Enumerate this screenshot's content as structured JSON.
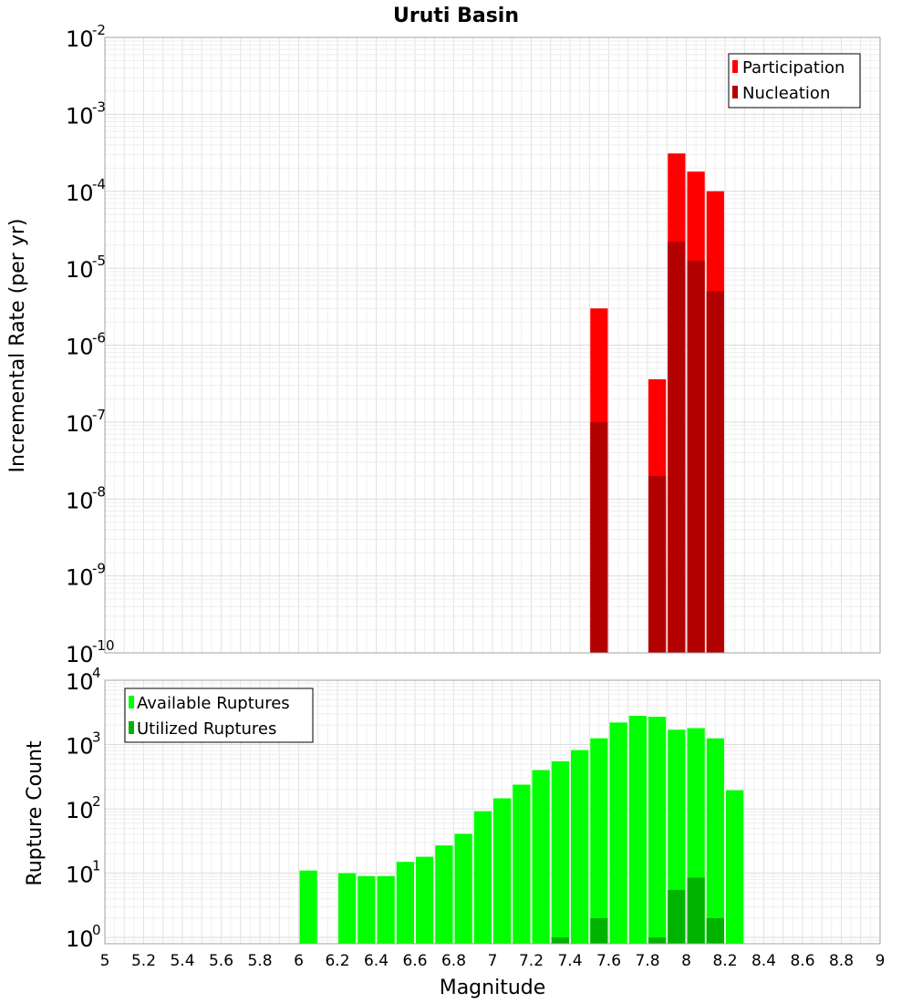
{
  "chart_data": [
    {
      "type": "bar",
      "panel": "top",
      "title": "Uruti Basin",
      "xlabel": "",
      "ylabel": "Incremental Rate (per yr)",
      "y_scale": "log",
      "ylim": [
        1e-10,
        0.01
      ],
      "xlim": [
        5,
        9
      ],
      "y_tick_exponents": [
        -10,
        -9,
        -8,
        -7,
        -6,
        -5,
        -4,
        -3,
        -2
      ],
      "bar_width": 0.1,
      "legend": {
        "position": "top-right",
        "entries": [
          "Participation",
          "Nucleation"
        ]
      },
      "grid": true,
      "series": [
        {
          "name": "Participation",
          "color": "#ff0000",
          "x": [
            7.55,
            7.85,
            7.95,
            8.05,
            8.15
          ],
          "values": [
            3e-06,
            3.6e-07,
            0.00031,
            0.00018,
            0.0001
          ]
        },
        {
          "name": "Nucleation",
          "color": "#b30000",
          "x": [
            7.55,
            7.85,
            7.95,
            8.05,
            8.15
          ],
          "values": [
            1e-07,
            2e-08,
            2.2e-05,
            1.25e-05,
            5e-06
          ]
        }
      ]
    },
    {
      "type": "bar",
      "panel": "bottom",
      "xlabel": "Magnitude",
      "ylabel": "Rupture Count",
      "y_scale": "log",
      "ylim": [
        0.8,
        10000.0
      ],
      "xlim": [
        5,
        9
      ],
      "x_ticks": [
        "5",
        "5.2",
        "5.4",
        "5.6",
        "5.8",
        "6",
        "6.2",
        "6.4",
        "6.6",
        "6.8",
        "7",
        "7.2",
        "7.4",
        "7.6",
        "7.8",
        "8",
        "8.2",
        "8.4",
        "8.6",
        "8.8",
        "9"
      ],
      "y_tick_exponents": [
        0,
        1,
        2,
        3,
        4
      ],
      "bar_width": 0.1,
      "legend": {
        "position": "top-left",
        "entries": [
          "Available Ruptures",
          "Utilized Ruptures"
        ]
      },
      "grid": true,
      "series": [
        {
          "name": "Available Ruptures",
          "color": "#00ff00",
          "x": [
            6.05,
            6.25,
            6.35,
            6.45,
            6.55,
            6.65,
            6.75,
            6.85,
            6.95,
            7.05,
            7.15,
            7.25,
            7.35,
            7.45,
            7.55,
            7.65,
            7.75,
            7.85,
            7.95,
            8.05,
            8.15,
            8.25
          ],
          "values": [
            11,
            10,
            9,
            9,
            15,
            18,
            27,
            41,
            92,
            146,
            238,
            400,
            550,
            820,
            1250,
            2200,
            2800,
            2700,
            1700,
            1800,
            1250,
            195
          ]
        },
        {
          "name": "Utilized Ruptures",
          "color": "#00b300",
          "x": [
            7.35,
            7.55,
            7.85,
            7.95,
            8.05,
            8.15
          ],
          "values": [
            1,
            2,
            1,
            5.5,
            8.5,
            2
          ]
        }
      ]
    }
  ]
}
